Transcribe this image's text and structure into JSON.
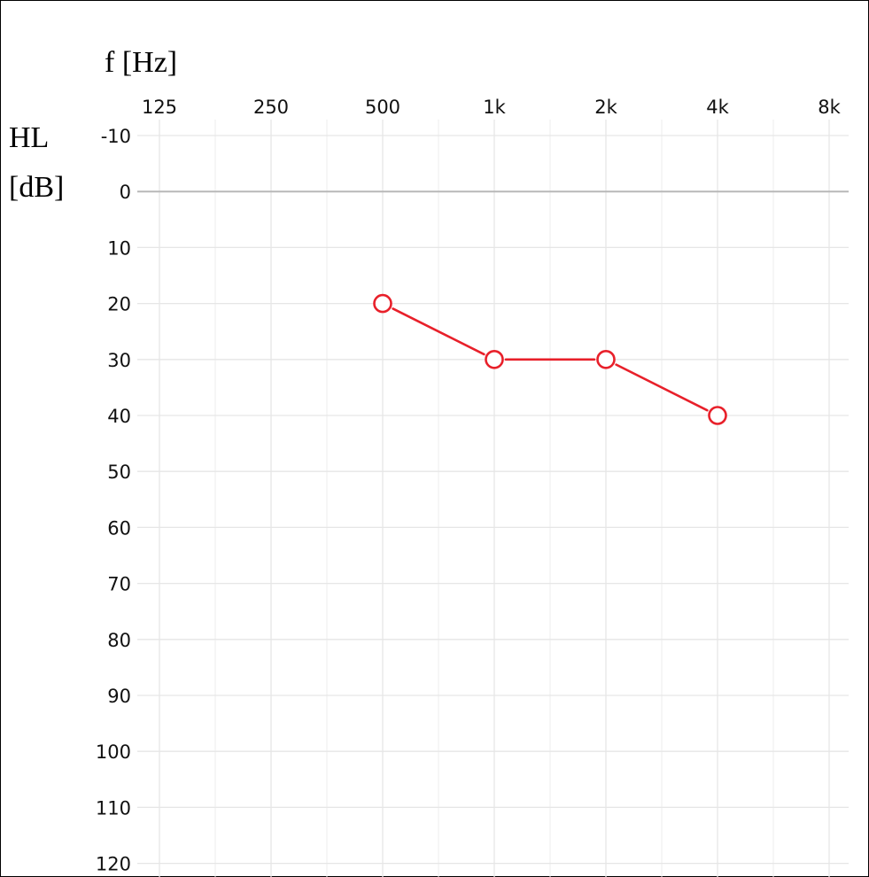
{
  "chart_data": {
    "type": "line",
    "x_title": "f [Hz]",
    "y_title_line1": "HL",
    "y_title_line2": "[dB]",
    "x_categories": [
      "125",
      "250",
      "500",
      "1k",
      "2k",
      "4k",
      "8k"
    ],
    "x_values": [
      125,
      250,
      500,
      1000,
      2000,
      4000,
      8000
    ],
    "x_scale": "log2",
    "y_ticks": [
      -10,
      0,
      10,
      20,
      30,
      40,
      50,
      60,
      70,
      80,
      90,
      100,
      110,
      120
    ],
    "y_tick_labels": [
      "-10",
      "0",
      "10",
      "20",
      "30",
      "40",
      "50",
      "60",
      "70",
      "80",
      "90",
      "100",
      "110",
      "120"
    ],
    "ylim": [
      -10,
      120
    ],
    "y_inverted": true,
    "grid": true,
    "series": [
      {
        "marker": "circle-open",
        "color": "#e8202a",
        "x": [
          500,
          1000,
          2000,
          4000
        ],
        "y": [
          20,
          30,
          30,
          40
        ]
      }
    ]
  }
}
